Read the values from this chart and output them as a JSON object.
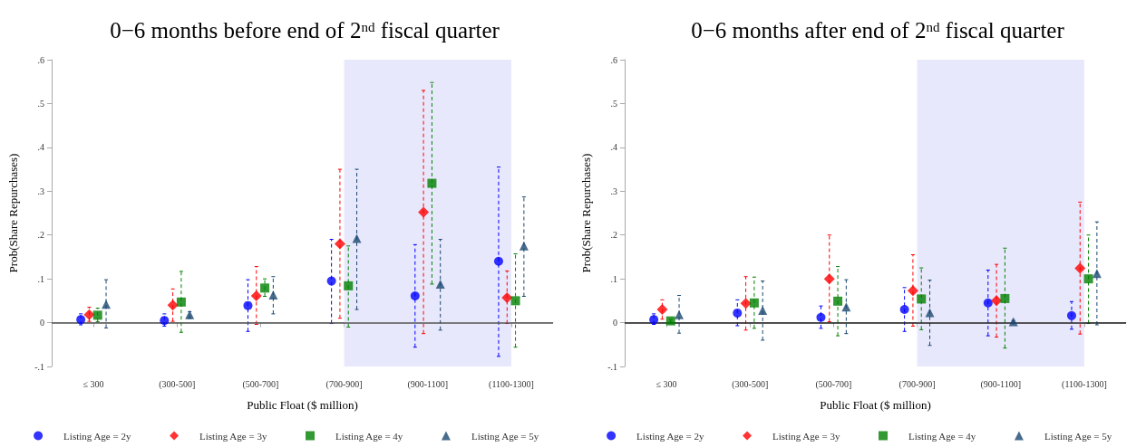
{
  "chart_data": [
    {
      "type": "scatter",
      "title": "0−6 months before end of 2$^{nd}$ fiscal quarter",
      "xlabel": "Public Float ($ million)",
      "ylabel": "Prob(Share Repurchases)",
      "categories": [
        "≤ 300",
        "(300-500]",
        "(500-700]",
        "(700-900]",
        "(900-1100]",
        "(1100-1300]"
      ],
      "series": [
        {
          "name": "Listing Age = 2y",
          "color": "#0000ff",
          "marker": "circle",
          "values": [
            0.007,
            0.005,
            0.039,
            0.095,
            0.061,
            0.14
          ],
          "errors": [
            [
              -0.005,
              0.02
            ],
            [
              -0.008,
              0.02
            ],
            [
              -0.02,
              0.098
            ],
            [
              -0.002,
              0.19
            ],
            [
              -0.056,
              0.178
            ],
            [
              -0.077,
              0.355
            ]
          ]
        },
        {
          "name": "Listing Age = 3y",
          "color": "#ff0000",
          "marker": "diamond",
          "values": [
            0.018,
            0.04,
            0.061,
            0.18,
            0.252,
            0.057
          ],
          "errors": [
            [
              0.003,
              0.035
            ],
            [
              0.003,
              0.077
            ],
            [
              -0.004,
              0.128
            ],
            [
              0.01,
              0.35
            ],
            [
              -0.025,
              0.53
            ],
            [
              -0.002,
              0.118
            ]
          ]
        },
        {
          "name": "Listing Age = 4y",
          "color": "#008000",
          "marker": "square",
          "values": [
            0.017,
            0.047,
            0.079,
            0.084,
            0.318,
            0.05
          ],
          "errors": [
            [
              0.002,
              0.033
            ],
            [
              -0.022,
              0.117
            ],
            [
              0.06,
              0.1
            ],
            [
              -0.01,
              0.175
            ],
            [
              0.088,
              0.548
            ],
            [
              -0.056,
              0.157
            ]
          ]
        },
        {
          "name": "Listing Age = 5y",
          "color": "#1a476f",
          "marker": "triangle",
          "values": [
            0.042,
            0.018,
            0.063,
            0.192,
            0.088,
            0.175
          ],
          "errors": [
            [
              -0.012,
              0.098
            ],
            [
              0.01,
              0.025
            ],
            [
              0.02,
              0.105
            ],
            [
              0.03,
              0.35
            ],
            [
              -0.017,
              0.19
            ],
            [
              0.06,
              0.287
            ]
          ]
        }
      ],
      "ylim": [
        -0.1,
        0.6
      ],
      "yticks": [
        {
          "value": -0.1,
          "label": "-.1"
        },
        0,
        {
          "value": 0.1,
          "label": ".1"
        },
        {
          "value": 0.2,
          "label": ".2"
        },
        {
          "value": 0.3,
          "label": ".3"
        },
        {
          "value": 0.4,
          "label": ".4"
        },
        {
          "value": 0.5,
          "label": ".5"
        },
        {
          "value": 0.6,
          "label": ".6"
        }
      ],
      "ref_lines": [
        {
          "axis": "y",
          "value": 0,
          "color": "#555555"
        }
      ],
      "bands": [
        {
          "axis": "x",
          "from": "(700-900]",
          "to": "(1100-1300]",
          "color": "#e8e8fc"
        }
      ],
      "line_style": "dashed",
      "grid": false,
      "legend": "bottom"
    },
    {
      "type": "scatter",
      "title": "0−6 months after end of 2$^{nd}$ fiscal quarter",
      "xlabel": "Public Float ($ million)",
      "ylabel": "Prob(Share Repurchases)",
      "categories": [
        "≤ 300",
        "(300-500]",
        "(500-700]",
        "(700-900]",
        "(900-1100]",
        "(1100-1300]"
      ],
      "series": [
        {
          "name": "Listing Age = 2y",
          "color": "#0000ff",
          "marker": "circle",
          "values": [
            0.007,
            0.022,
            0.012,
            0.03,
            0.045,
            0.016
          ],
          "errors": [
            [
              -0.004,
              0.02
            ],
            [
              -0.007,
              0.052
            ],
            [
              -0.013,
              0.038
            ],
            [
              -0.02,
              0.08
            ],
            [
              -0.03,
              0.12
            ],
            [
              -0.015,
              0.048
            ]
          ]
        },
        {
          "name": "Listing Age = 3y",
          "color": "#ff0000",
          "marker": "diamond",
          "values": [
            0.03,
            0.044,
            0.1,
            0.073,
            0.05,
            0.124
          ],
          "errors": [
            [
              0.008,
              0.052
            ],
            [
              -0.017,
              0.105
            ],
            [
              0.002,
              0.2
            ],
            [
              -0.008,
              0.155
            ],
            [
              -0.033,
              0.133
            ],
            [
              -0.026,
              0.275
            ]
          ]
        },
        {
          "name": "Listing Age = 4y",
          "color": "#008000",
          "marker": "square",
          "values": [
            0.004,
            0.045,
            0.049,
            0.054,
            0.055,
            0.1
          ],
          "errors": [
            [
              0.001,
              0.007
            ],
            [
              -0.013,
              0.104
            ],
            [
              -0.03,
              0.128
            ],
            [
              -0.016,
              0.125
            ],
            [
              -0.058,
              0.17
            ],
            [
              -0.002,
              0.2
            ]
          ]
        },
        {
          "name": "Listing Age = 5y",
          "color": "#1a476f",
          "marker": "triangle",
          "values": [
            0.018,
            0.028,
            0.036,
            0.023,
            0.002,
            0.112
          ],
          "errors": [
            [
              -0.024,
              0.062
            ],
            [
              -0.04,
              0.095
            ],
            [
              -0.025,
              0.098
            ],
            [
              -0.052,
              0.097
            ],
            [
              0,
              0.005
            ],
            [
              -0.005,
              0.23
            ]
          ]
        }
      ],
      "ylim": [
        -0.1,
        0.6
      ],
      "yticks": [
        {
          "value": -0.1,
          "label": "-.1"
        },
        0,
        {
          "value": 0.1,
          "label": ".1"
        },
        {
          "value": 0.2,
          "label": ".2"
        },
        {
          "value": 0.3,
          "label": ".3"
        },
        {
          "value": 0.4,
          "label": ".4"
        },
        {
          "value": 0.5,
          "label": ".5"
        },
        {
          "value": 0.6,
          "label": ".6"
        }
      ],
      "ref_lines": [
        {
          "axis": "y",
          "value": 0,
          "color": "#222222"
        }
      ],
      "bands": [
        {
          "axis": "x",
          "from": "(700-900]",
          "to": "(1100-1300]",
          "color": "#e8e8fc"
        }
      ],
      "line_style": "dashed",
      "grid": false,
      "legend": "bottom"
    }
  ]
}
